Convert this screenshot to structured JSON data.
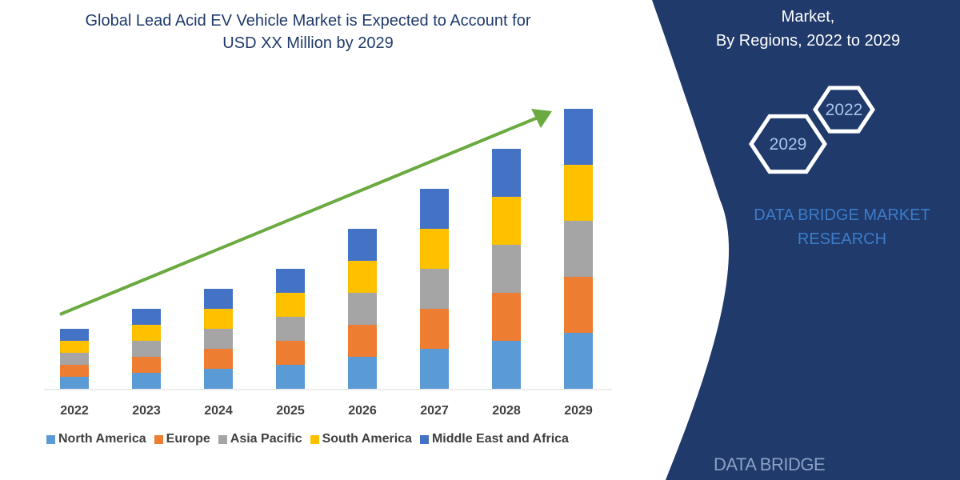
{
  "title_lines": [
    "Global Lead Acid EV Vehicle Market is Expected to Account for",
    "USD XX Million by 2029"
  ],
  "side_panel": {
    "title_lines": [
      "Market,",
      "By Regions, 2022 to 2029"
    ],
    "hexagons": [
      "2022",
      "2029"
    ],
    "brand_lines": [
      "DATA BRIDGE MARKET",
      "RESEARCH"
    ],
    "logo_text": "DATA BRIDGE",
    "panel_color": "#1f3a6b"
  },
  "chart_data": {
    "type": "bar",
    "stacked": true,
    "categories": [
      "2022",
      "2023",
      "2024",
      "2025",
      "2026",
      "2027",
      "2028",
      "2029"
    ],
    "series": [
      {
        "name": "North America",
        "color": "#5b9bd5",
        "values": [
          1.5,
          2,
          2.5,
          3,
          4,
          5,
          6,
          7
        ]
      },
      {
        "name": "Europe",
        "color": "#ed7d31",
        "values": [
          1.5,
          2,
          2.5,
          3,
          4,
          5,
          6,
          7
        ]
      },
      {
        "name": "Asia Pacific",
        "color": "#a5a5a5",
        "values": [
          1.5,
          2,
          2.5,
          3,
          4,
          5,
          6,
          7
        ]
      },
      {
        "name": "South America",
        "color": "#ffc000",
        "values": [
          1.5,
          2,
          2.5,
          3,
          4,
          5,
          6,
          7
        ]
      },
      {
        "name": "Middle East and Africa",
        "color": "#4472c4",
        "values": [
          1.5,
          2,
          2.5,
          3,
          4,
          5,
          6,
          7
        ]
      }
    ],
    "trend_arrow_color": "#6aaa40",
    "legend_position": "bottom",
    "grid": false,
    "xlabel": "",
    "ylabel": ""
  }
}
